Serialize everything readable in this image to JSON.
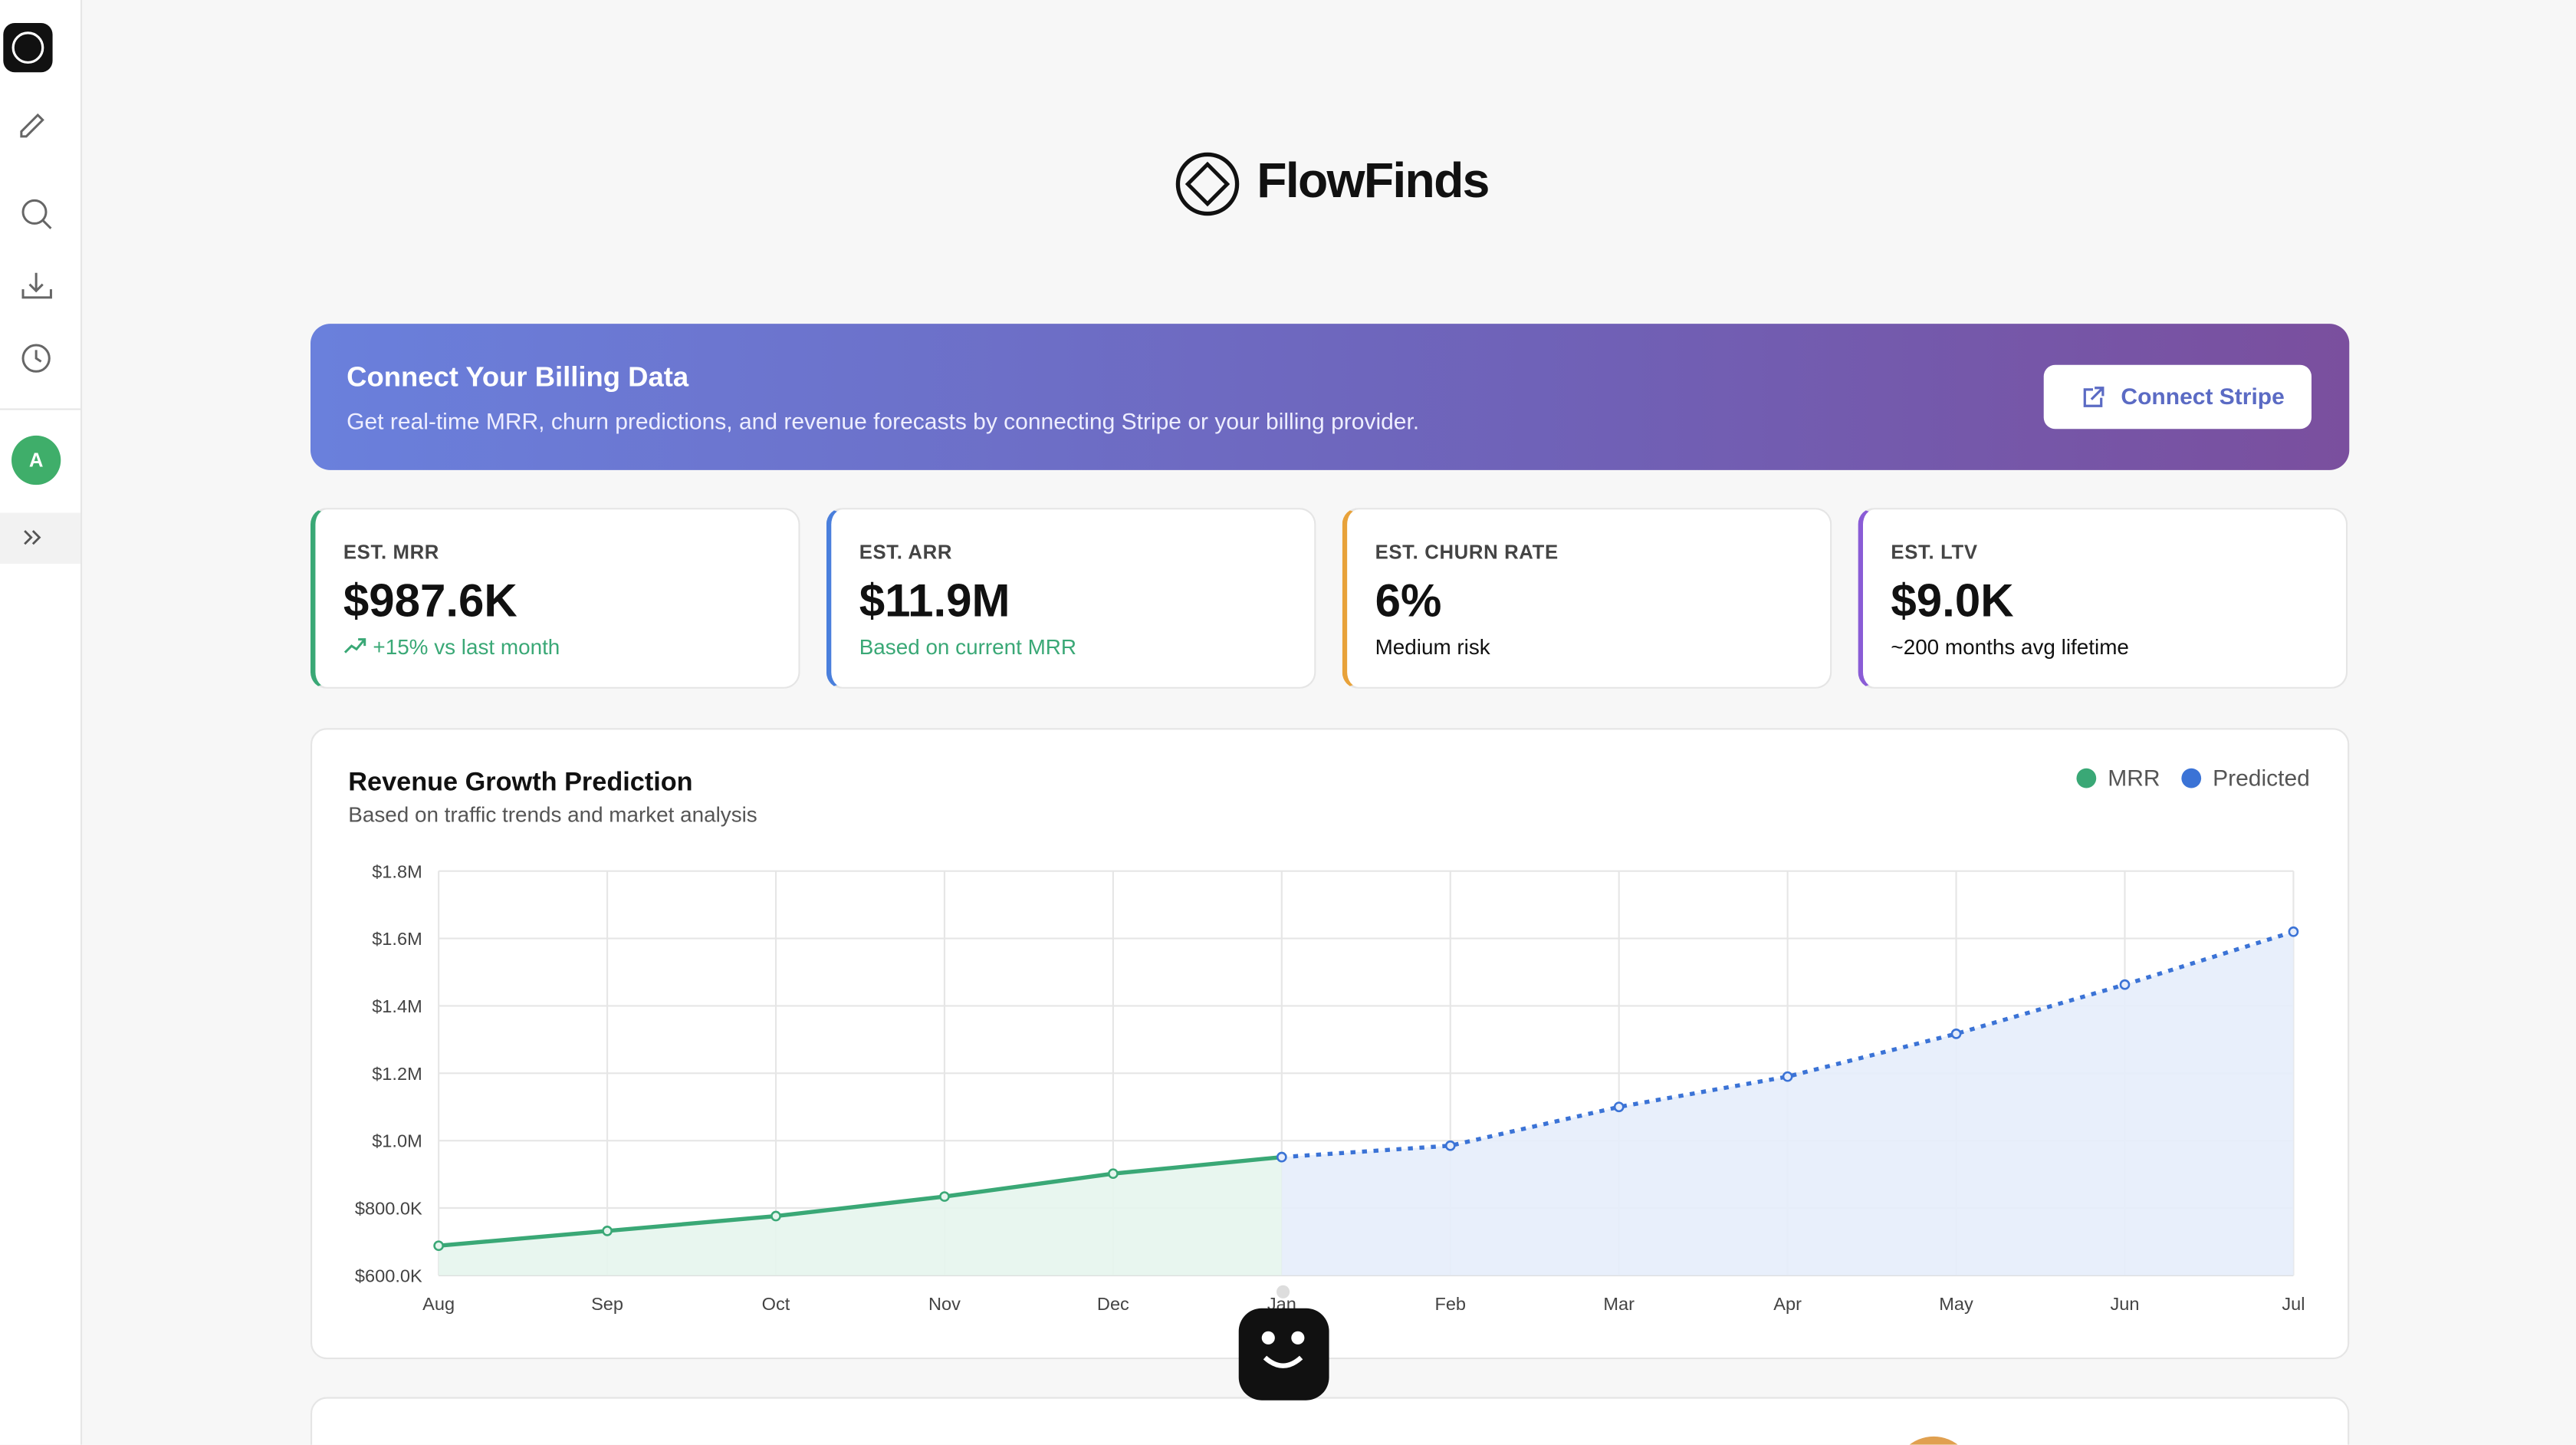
{
  "sidebar": {
    "avatar": "A"
  },
  "header": {
    "brand": "FlowFinds"
  },
  "banner": {
    "title": "Connect Your Billing Data",
    "description": "Get real-time MRR, churn predictions, and revenue forecasts by connecting Stripe or your billing provider.",
    "button": "Connect Stripe"
  },
  "cards": [
    {
      "label": "EST. MRR",
      "value": "$987.6K",
      "note": "+15% vs last month"
    },
    {
      "label": "EST. ARR",
      "value": "$11.9M",
      "note": "Based on current MRR"
    },
    {
      "label": "EST. CHURN RATE",
      "value": "6%",
      "note": "Medium risk"
    },
    {
      "label": "EST. LTV",
      "value": "$9.0K",
      "note": "~200 months avg lifetime"
    }
  ],
  "chart_data": {
    "type": "line",
    "title": "Revenue Growth Prediction",
    "subtitle": "Based on traffic trends and market analysis",
    "categories": [
      "Aug",
      "Sep",
      "Oct",
      "Nov",
      "Dec",
      "Jan",
      "Feb",
      "Mar",
      "Apr",
      "May",
      "Jun",
      "Jul"
    ],
    "series": [
      {
        "name": "MRR",
        "color": "#3aa876",
        "values": [
          688000,
          732000,
          776000,
          834000,
          902000,
          951000,
          null,
          null,
          null,
          null,
          null,
          null
        ]
      },
      {
        "name": "Predicted",
        "color": "#3b73d6",
        "values": [
          null,
          null,
          null,
          null,
          null,
          951000,
          985000,
          1100000,
          1190000,
          1317000,
          1463000,
          1620000
        ]
      }
    ],
    "ylim": [
      600000,
      1800000
    ],
    "yticks": [
      {
        "value": 600000,
        "label": "$600.0K"
      },
      {
        "value": 800000,
        "label": "$800.0K"
      },
      {
        "value": 1000000,
        "label": "$1.0M"
      },
      {
        "value": 1200000,
        "label": "$1.2M"
      },
      {
        "value": 1400000,
        "label": "$1.4M"
      },
      {
        "value": 1600000,
        "label": "$1.6M"
      },
      {
        "value": 1800000,
        "label": "$1.8M"
      }
    ],
    "grid": true,
    "legend": "top-right"
  }
}
